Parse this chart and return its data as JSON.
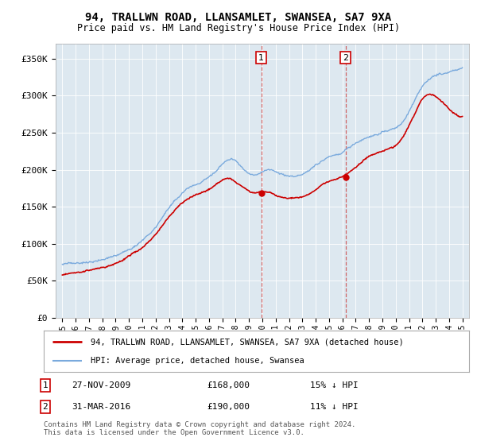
{
  "title": "94, TRALLWN ROAD, LLANSAMLET, SWANSEA, SA7 9XA",
  "subtitle": "Price paid vs. HM Land Registry's House Price Index (HPI)",
  "ylabel_ticks": [
    "£0",
    "£50K",
    "£100K",
    "£150K",
    "£200K",
    "£250K",
    "£300K",
    "£350K"
  ],
  "ytick_vals": [
    0,
    50000,
    100000,
    150000,
    200000,
    250000,
    300000,
    350000
  ],
  "ylim": [
    0,
    370000
  ],
  "xlim_start": 1994.5,
  "xlim_end": 2025.5,
  "legend_line1": "94, TRALLWN ROAD, LLANSAMLET, SWANSEA, SA7 9XA (detached house)",
  "legend_line2": "HPI: Average price, detached house, Swansea",
  "sale1_date": "27-NOV-2009",
  "sale1_price": "£168,000",
  "sale1_pct": "15% ↓ HPI",
  "sale2_date": "31-MAR-2016",
  "sale2_price": "£190,000",
  "sale2_pct": "11% ↓ HPI",
  "footer": "Contains HM Land Registry data © Crown copyright and database right 2024.\nThis data is licensed under the Open Government Licence v3.0.",
  "line_red": "#cc0000",
  "line_blue": "#7aaadd",
  "background_plot": "#dde8f0",
  "background_fig": "#ffffff",
  "vline1_x": 2009.92,
  "vline2_x": 2016.25,
  "sale1_y": 168000,
  "sale2_y": 190000,
  "hpi_base": {
    "1995.0": 72000,
    "1995.5": 73000,
    "1996.0": 74500,
    "1996.5": 76000,
    "1997.0": 78000,
    "1997.5": 80000,
    "1998.0": 82000,
    "1998.5": 84500,
    "1999.0": 87000,
    "1999.5": 91000,
    "2000.0": 96000,
    "2000.5": 101000,
    "2001.0": 108000,
    "2001.5": 116000,
    "2002.0": 126000,
    "2002.5": 140000,
    "2003.0": 152000,
    "2003.5": 162000,
    "2004.0": 170000,
    "2004.5": 178000,
    "2005.0": 182000,
    "2005.5": 185000,
    "2006.0": 190000,
    "2006.5": 198000,
    "2007.0": 208000,
    "2007.5": 214000,
    "2008.0": 212000,
    "2008.5": 204000,
    "2009.0": 196000,
    "2009.5": 194000,
    "2010.0": 198000,
    "2010.5": 200000,
    "2011.0": 196000,
    "2011.5": 192000,
    "2012.0": 190000,
    "2012.5": 191000,
    "2013.0": 193000,
    "2013.5": 198000,
    "2014.0": 204000,
    "2014.5": 210000,
    "2015.0": 215000,
    "2015.5": 218000,
    "2016.0": 220000,
    "2016.5": 226000,
    "2017.0": 232000,
    "2017.5": 238000,
    "2018.0": 243000,
    "2018.5": 246000,
    "2019.0": 249000,
    "2019.5": 252000,
    "2020.0": 255000,
    "2020.5": 263000,
    "2021.0": 278000,
    "2021.5": 298000,
    "2022.0": 315000,
    "2022.5": 325000,
    "2023.0": 330000,
    "2023.5": 332000,
    "2024.0": 335000,
    "2024.5": 337000,
    "2025.0": 340000
  },
  "sold_base": {
    "1995.0": 58000,
    "1995.5": 59000,
    "1996.0": 60500,
    "1996.5": 62000,
    "1997.0": 63500,
    "1997.5": 65500,
    "1998.0": 67500,
    "1998.5": 70000,
    "1999.0": 72000,
    "1999.5": 76000,
    "2000.0": 81000,
    "2000.5": 86000,
    "2001.0": 92000,
    "2001.5": 100000,
    "2002.0": 110000,
    "2002.5": 122000,
    "2003.0": 133000,
    "2003.5": 143000,
    "2004.0": 152000,
    "2004.5": 159000,
    "2005.0": 163000,
    "2005.5": 166000,
    "2006.0": 170000,
    "2006.5": 176000,
    "2007.0": 182000,
    "2007.5": 184000,
    "2008.0": 180000,
    "2008.5": 174000,
    "2009.0": 168000,
    "2009.5": 168000,
    "2010.0": 170000,
    "2010.5": 169000,
    "2011.0": 165000,
    "2011.5": 162000,
    "2012.0": 161000,
    "2012.5": 162000,
    "2013.0": 164000,
    "2013.5": 168000,
    "2014.0": 174000,
    "2014.5": 180000,
    "2015.0": 184000,
    "2015.5": 187000,
    "2016.0": 190000,
    "2016.5": 196000,
    "2017.0": 203000,
    "2017.5": 210000,
    "2018.0": 216000,
    "2018.5": 220000,
    "2019.0": 223000,
    "2019.5": 226000,
    "2020.0": 230000,
    "2020.5": 241000,
    "2021.0": 258000,
    "2021.5": 276000,
    "2022.0": 293000,
    "2022.5": 298000,
    "2023.0": 295000,
    "2023.5": 288000,
    "2024.0": 278000,
    "2024.5": 270000,
    "2025.0": 268000
  }
}
